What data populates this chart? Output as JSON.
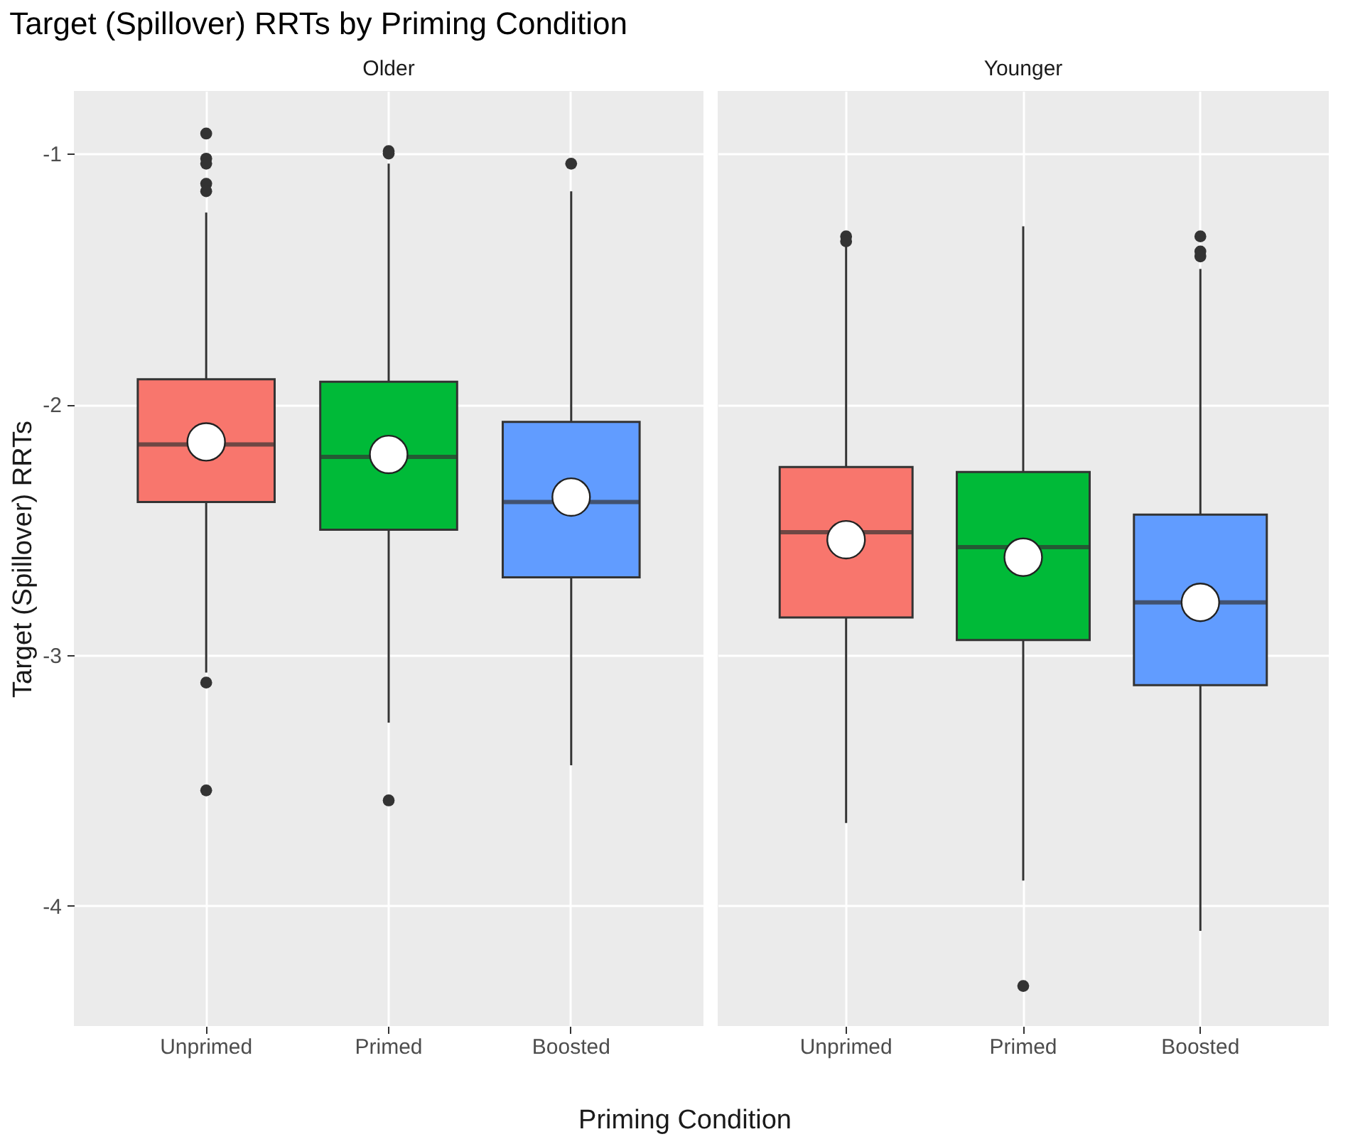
{
  "chart_data": [
    {
      "type": "box",
      "title": "Target (Spillover) RRTs by Priming Condition",
      "subtitle": "Older",
      "xlabel": "Priming Condition",
      "ylabel": "Target (Spillover) RRTs",
      "categories": [
        "Unprimed",
        "Primed",
        "Boosted"
      ],
      "colors": [
        "#f8766d",
        "#00ba38",
        "#619cff"
      ],
      "ylim": [
        -4.48,
        -0.75
      ],
      "yticks": [
        -1,
        -2,
        -3,
        -4
      ],
      "grid": true,
      "boxes": [
        {
          "low": -3.07,
          "q1": -2.39,
          "median": -2.16,
          "q3": -1.9,
          "high": -1.235,
          "mean": -2.15,
          "outliers": [
            -0.92,
            -1.02,
            -1.04,
            -1.12,
            -1.15,
            -3.11,
            -3.54
          ]
        },
        {
          "low": -3.27,
          "q1": -2.5,
          "median": -2.21,
          "q3": -1.91,
          "high": -1.04,
          "mean": -2.2,
          "outliers": [
            -0.99,
            -1.0,
            -3.58
          ]
        },
        {
          "low": -3.44,
          "q1": -2.69,
          "median": -2.39,
          "q3": -2.07,
          "high": -1.15,
          "mean": -2.37,
          "outliers": [
            -1.04
          ]
        }
      ]
    },
    {
      "type": "box",
      "subtitle": "Younger",
      "categories": [
        "Unprimed",
        "Primed",
        "Boosted"
      ],
      "colors": [
        "#f8766d",
        "#00ba38",
        "#619cff"
      ],
      "ylim": [
        -4.48,
        -0.75
      ],
      "yticks": [
        -1,
        -2,
        -3,
        -4
      ],
      "grid": true,
      "tick_labels": "x",
      "boxes": [
        {
          "low": -3.67,
          "q1": -2.85,
          "median": -2.51,
          "q3": -2.25,
          "high": -1.36,
          "mean": -2.54,
          "outliers": [
            -1.33,
            -1.35
          ]
        },
        {
          "low": -3.9,
          "q1": -2.94,
          "median": -2.57,
          "q3": -2.27,
          "high": -1.29,
          "mean": -2.61,
          "outliers": [
            -4.32
          ]
        },
        {
          "low": -4.1,
          "q1": -3.12,
          "median": -2.79,
          "q3": -2.44,
          "high": -1.46,
          "mean": -2.79,
          "outliers": [
            -1.33,
            -1.39,
            -1.41
          ]
        }
      ]
    }
  ]
}
